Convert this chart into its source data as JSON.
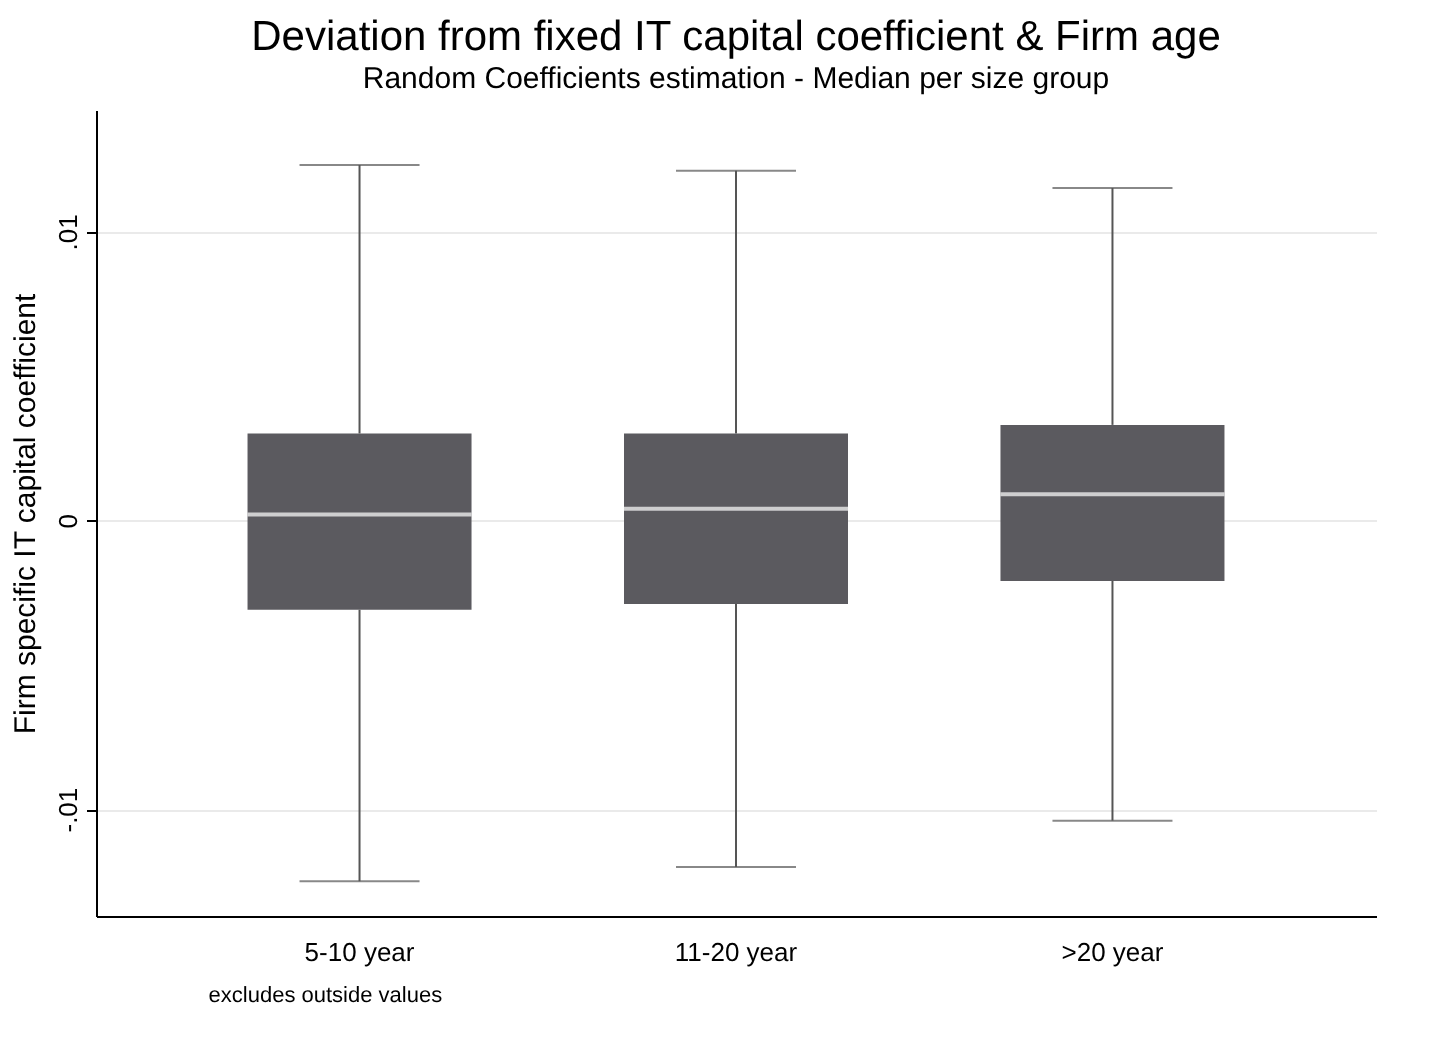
{
  "chart_data": {
    "type": "box",
    "title": "Deviation from fixed IT capital coefficient & Firm age",
    "subtitle": "Random Coefficients estimation - Median per size group",
    "ylabel": "Firm specific IT capital coefficient",
    "categories": [
      "5-10 year",
      "11-20 year",
      ">20 year"
    ],
    "boxes": [
      {
        "low": -0.0125,
        "q1": -0.0031,
        "median": 0.0002,
        "q3": 0.003,
        "high": 0.0123
      },
      {
        "low": -0.012,
        "q1": -0.0029,
        "median": 0.0004,
        "q3": 0.003,
        "high": 0.0121
      },
      {
        "low": -0.0104,
        "q1": -0.0021,
        "median": 0.0009,
        "q3": 0.0033,
        "high": 0.0115
      }
    ],
    "color": "#5b5a5f",
    "ylim": [
      -0.0137,
      0.0142
    ],
    "yticks": [
      {
        "value": -0.01,
        "label": "-.01"
      },
      {
        "value": 0,
        "label": "0"
      },
      {
        "value": 0.01,
        "label": ".01"
      }
    ],
    "grid": "y",
    "annotations": [
      "excludes outside values"
    ]
  }
}
